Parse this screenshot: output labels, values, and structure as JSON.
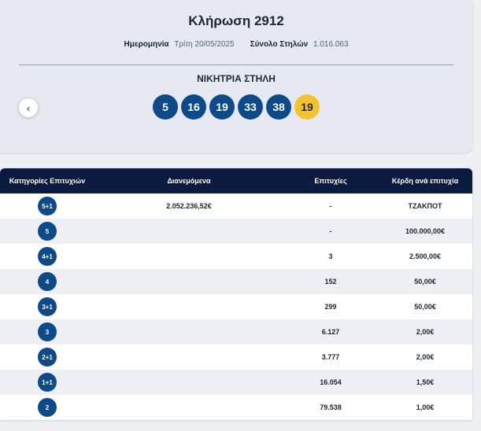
{
  "draw": {
    "title": "Κλήρωση 2912",
    "date_label": "Ημερομηνία",
    "date_value": "Τρίτη 20/05/2025",
    "columns_label": "Σύνολο Στηλών",
    "columns_value": "1.016.063",
    "winning_label": "ΝΙΚΗΤΡΙΑ ΣΤΗΛΗ",
    "prev_icon": "chevron-left-icon",
    "prev_glyph": "‹",
    "numbers": [
      "5",
      "16",
      "19",
      "33",
      "38"
    ],
    "bonus": "19",
    "ball_color": "#0d4a8a",
    "bonus_color": "#f5c22a"
  },
  "table": {
    "headers": [
      "Κατηγορίες Επιτυχιών",
      "Διανεμόμενα",
      "Επιτυχίες",
      "Κέρδη ανά επιτυχία"
    ],
    "rows": [
      {
        "category": "5+1",
        "distributed": "2.052.236,52€",
        "winners": "-",
        "prize": "ΤΖΑΚΠΟΤ"
      },
      {
        "category": "5",
        "distributed": "",
        "winners": "-",
        "prize": "100.000,00€"
      },
      {
        "category": "4+1",
        "distributed": "",
        "winners": "3",
        "prize": "2.500,00€"
      },
      {
        "category": "4",
        "distributed": "",
        "winners": "152",
        "prize": "50,00€"
      },
      {
        "category": "3+1",
        "distributed": "",
        "winners": "299",
        "prize": "50,00€"
      },
      {
        "category": "3",
        "distributed": "",
        "winners": "6.127",
        "prize": "2,00€"
      },
      {
        "category": "2+1",
        "distributed": "",
        "winners": "3.777",
        "prize": "2,00€"
      },
      {
        "category": "1+1",
        "distributed": "",
        "winners": "16.054",
        "prize": "1,50€"
      },
      {
        "category": "2",
        "distributed": "",
        "winners": "79.538",
        "prize": "1,00€"
      }
    ],
    "header_color": "#0b1b3f"
  }
}
